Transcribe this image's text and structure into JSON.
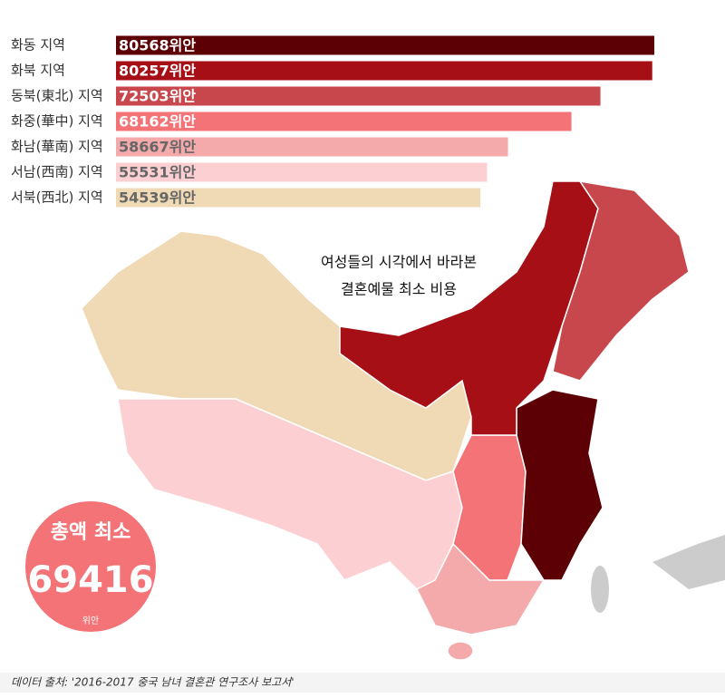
{
  "chart_data": {
    "type": "bar",
    "orientation": "horizontal",
    "title": [
      "여성들의 시각에서 바라본",
      "결혼예물 최소 비용"
    ],
    "categories": [
      "화동 지역",
      "화북 지역",
      "동북(東北) 지역",
      "화중(華中) 지역",
      "화남(華南) 지역",
      "서남(西南) 지역",
      "서북(西北) 지역"
    ],
    "values": [
      80568,
      80257,
      72503,
      68162,
      58667,
      55531,
      54539
    ],
    "value_labels": [
      "80568위안",
      "80257위안",
      "72503위안",
      "68162위안",
      "58667위안",
      "55531위안",
      "54539위안"
    ],
    "colors": [
      "#5c0006",
      "#a50f15",
      "#c8474d",
      "#f37377",
      "#f4a9ab",
      "#fcd0d2",
      "#f0d9b5"
    ],
    "total": {
      "label": "총액 최소",
      "value": 69416,
      "unit": "위안"
    },
    "source": "데이터 출처:  '2016-2017 중국 남녀 결혼관 연구조사 보고서'"
  }
}
